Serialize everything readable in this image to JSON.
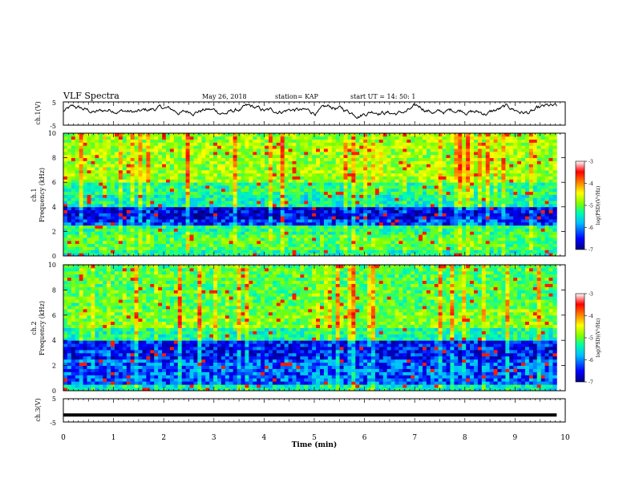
{
  "header": {
    "title": "VLF Spectra",
    "date": "May 26, 2018",
    "station": "station= KAP",
    "start": "start  UT =   14: 50: 1"
  },
  "chart_data": [
    {
      "type": "line",
      "panel": "ch1-waveform",
      "ylabel": "ch.1(V)",
      "ylim": [
        -5,
        5
      ],
      "yticks": [
        "5",
        "-5"
      ],
      "xlim": [
        0,
        10
      ],
      "x_end": 9.83,
      "series": [
        {
          "values": []
        }
      ],
      "description_values": "noisy voltage trace fluctuating mostly between about -1 and 3 V"
    },
    {
      "type": "heatmap",
      "panel": "ch1-spectrogram",
      "ylabel_top": "ch.1",
      "ylabel": "Frequency (kHz)",
      "ylim": [
        0,
        10
      ],
      "yticks": [
        "0",
        "2",
        "4",
        "6",
        "8",
        "10"
      ],
      "xlim": [
        0,
        10
      ],
      "x_end": 9.83,
      "colorbar": {
        "label": "log(PSD)(V²/Hz)",
        "range": [
          -7,
          -3
        ],
        "ticks": [
          "-3",
          "-4",
          "-5",
          "-6",
          "-7"
        ]
      },
      "bands": [
        {
          "f": [
            0,
            0.4
          ],
          "level": -5.5
        },
        {
          "f": [
            0.4,
            1.8
          ],
          "level": -5.2
        },
        {
          "f": [
            1.8,
            2.4
          ],
          "level": -5.4
        },
        {
          "f": [
            2.4,
            3.0
          ],
          "level": -6.4
        },
        {
          "f": [
            3.0,
            4.0
          ],
          "level": -6.6
        },
        {
          "f": [
            4.0,
            5.0
          ],
          "level": -5.6
        },
        {
          "f": [
            5.0,
            6.0
          ],
          "level": -5.4
        },
        {
          "f": [
            6.0,
            10.0
          ],
          "level": -4.9
        }
      ]
    },
    {
      "type": "heatmap",
      "panel": "ch2-spectrogram",
      "ylabel_top": "ch.2",
      "ylabel": "Frequency (kHz)",
      "ylim": [
        0,
        10
      ],
      "yticks": [
        "0",
        "2",
        "4",
        "6",
        "8",
        "10"
      ],
      "xlim": [
        0,
        10
      ],
      "x_end": 9.83,
      "colorbar": {
        "label": "log(PSD)(V²/Hz)",
        "range": [
          -7,
          -3
        ],
        "ticks": [
          "-3",
          "-4",
          "-5",
          "-6",
          "-7"
        ]
      },
      "bands": [
        {
          "f": [
            0,
            0.4
          ],
          "level": -5.6
        },
        {
          "f": [
            0.4,
            2.4
          ],
          "level": -6.3
        },
        {
          "f": [
            2.4,
            4.0
          ],
          "level": -6.5
        },
        {
          "f": [
            4.0,
            5.0
          ],
          "level": -5.5
        },
        {
          "f": [
            5.0,
            6.4
          ],
          "level": -5.0
        },
        {
          "f": [
            6.4,
            10.0
          ],
          "level": -5.2
        }
      ]
    },
    {
      "type": "line",
      "panel": "ch3-waveform",
      "ylabel": "ch.3(V)",
      "ylim": [
        -5,
        5
      ],
      "yticks": [
        "5",
        "-5"
      ],
      "xlim": [
        0,
        10
      ],
      "x_end": 9.83,
      "series": [
        {
          "values": [
            -2,
            -2
          ]
        }
      ]
    }
  ],
  "xaxis": {
    "label": "Time  (min)",
    "ticks": [
      "0",
      "1",
      "2",
      "3",
      "4",
      "5",
      "6",
      "7",
      "8",
      "9",
      "10"
    ]
  },
  "colors": {
    "background": "#ffffff",
    "trace": "#000000",
    "colormap": [
      "#000080",
      "#0000ff",
      "#00bfff",
      "#00ffaa",
      "#7fff00",
      "#ffff00",
      "#ff8000",
      "#ff0000",
      "#ffffff"
    ]
  }
}
